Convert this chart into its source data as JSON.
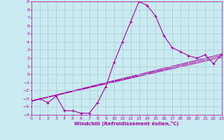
{
  "xlabel": "Windchill (Refroidissement éolien,°C)",
  "background_color": "#c8eaf0",
  "line_color": "#aa00aa",
  "grid_color": "#aacccc",
  "xlim": [
    0,
    23
  ],
  "ylim": [
    -5,
    9
  ],
  "xticks": [
    0,
    1,
    2,
    3,
    4,
    5,
    6,
    7,
    8,
    9,
    10,
    11,
    12,
    13,
    14,
    15,
    16,
    17,
    18,
    19,
    20,
    21,
    22,
    23
  ],
  "yticks": [
    -5,
    -4,
    -3,
    -2,
    -1,
    0,
    1,
    2,
    3,
    4,
    5,
    6,
    7,
    8,
    9
  ],
  "main_series": {
    "x": [
      0,
      1,
      2,
      3,
      4,
      5,
      6,
      7,
      8,
      9,
      10,
      11,
      12,
      13,
      14,
      15,
      16,
      17,
      18,
      19,
      20,
      21,
      22,
      23
    ],
    "y": [
      -3.3,
      -3.0,
      -3.5,
      -2.7,
      -4.5,
      -4.5,
      -4.8,
      -4.8,
      -3.5,
      -1.5,
      1.5,
      4.0,
      6.5,
      9.0,
      8.5,
      7.2,
      4.8,
      3.3,
      2.8,
      2.3,
      2.0,
      2.4,
      1.3,
      2.5
    ]
  },
  "trend_lines": [
    {
      "x": [
        0,
        23
      ],
      "y": [
        -3.3,
        2.5
      ]
    },
    {
      "x": [
        0,
        23
      ],
      "y": [
        -3.3,
        2.3
      ]
    },
    {
      "x": [
        0,
        23
      ],
      "y": [
        -3.3,
        2.1
      ]
    }
  ]
}
